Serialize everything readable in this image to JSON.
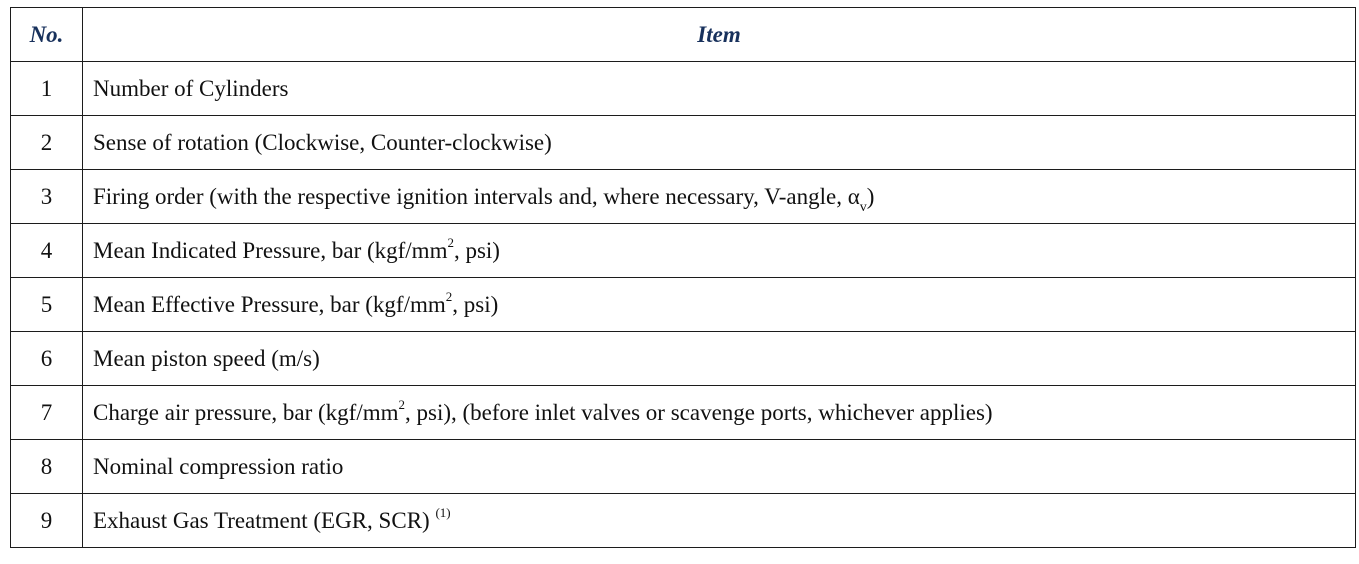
{
  "table": {
    "headers": {
      "no": "No.",
      "item": "Item"
    },
    "rows": [
      {
        "no": "1",
        "parts": [
          "Number of Cylinders"
        ]
      },
      {
        "no": "2",
        "parts": [
          "Sense of rotation (Clockwise, Counter-clockwise)"
        ]
      },
      {
        "no": "3",
        "parts": [
          "Firing order (with the respective ignition intervals and, where necessary, V-angle, α",
          "v",
          ")"
        ]
      },
      {
        "no": "4",
        "parts": [
          "Mean Indicated Pressure, bar (kgf/mm",
          "2",
          ", psi)"
        ]
      },
      {
        "no": "5",
        "parts": [
          "Mean Effective Pressure, bar (kgf/mm",
          "2",
          ", psi)"
        ]
      },
      {
        "no": "6",
        "parts": [
          "Mean piston speed (m/s)"
        ]
      },
      {
        "no": "7",
        "parts": [
          "Charge air pressure, bar (kgf/mm",
          "2",
          ", psi), (before inlet valves or scavenge ports, whichever applies)"
        ]
      },
      {
        "no": "8",
        "parts": [
          "Nominal compression ratio"
        ]
      },
      {
        "no": "9",
        "parts": [
          "Exhaust Gas Treatment (EGR, SCR) ",
          "(1)"
        ]
      }
    ]
  }
}
